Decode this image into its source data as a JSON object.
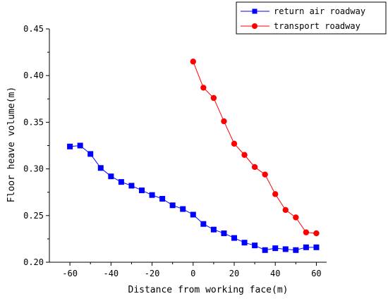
{
  "chart_data": {
    "type": "line",
    "xlabel": "Distance from working face(m)",
    "ylabel": "Floor heave volume(m)",
    "xlim": [
      -70,
      65
    ],
    "ylim": [
      0.2,
      0.45
    ],
    "x_ticks": [
      -60,
      -40,
      -20,
      0,
      20,
      40,
      60
    ],
    "y_ticks": [
      0.2,
      0.25,
      0.3,
      0.35,
      0.4,
      0.45
    ],
    "x_tick_labels": [
      "-60",
      "-40",
      "-20",
      "0",
      "20",
      "40",
      "60"
    ],
    "y_tick_labels": [
      "0.20",
      "0.25",
      "0.30",
      "0.35",
      "0.40",
      "0.45"
    ],
    "legend_position": "top-right",
    "series": [
      {
        "name": "return air roadway",
        "color": "#0000ff",
        "marker": "square",
        "x": [
          -60,
          -55,
          -50,
          -45,
          -40,
          -35,
          -30,
          -25,
          -20,
          -15,
          -10,
          -5,
          0,
          5,
          10,
          15,
          20,
          25,
          30,
          35,
          40,
          45,
          50,
          55,
          60
        ],
        "y": [
          0.324,
          0.325,
          0.316,
          0.301,
          0.292,
          0.286,
          0.282,
          0.277,
          0.272,
          0.268,
          0.261,
          0.257,
          0.251,
          0.241,
          0.235,
          0.231,
          0.226,
          0.221,
          0.218,
          0.213,
          0.215,
          0.214,
          0.213,
          0.216,
          0.216
        ]
      },
      {
        "name": "transport roadway",
        "color": "#ff0000",
        "marker": "circle",
        "x": [
          0,
          5,
          10,
          15,
          20,
          25,
          30,
          35,
          40,
          45,
          50,
          55,
          60
        ],
        "y": [
          0.415,
          0.387,
          0.376,
          0.351,
          0.327,
          0.315,
          0.302,
          0.294,
          0.273,
          0.256,
          0.248,
          0.232,
          0.231
        ]
      }
    ]
  }
}
